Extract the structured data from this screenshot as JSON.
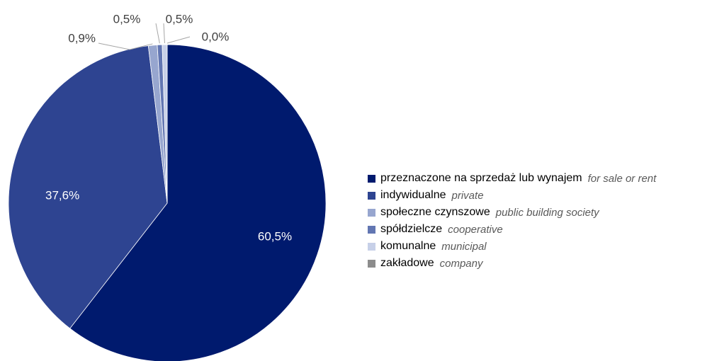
{
  "chart_data": {
    "type": "pie",
    "title": "",
    "slices": [
      {
        "label": "przeznaczone na sprzedaż lub wynajem",
        "label_en": "for sale or rent",
        "value": 60.5,
        "value_label": "60,5%",
        "color": "#001a6e"
      },
      {
        "label": "indywidualne",
        "label_en": "private",
        "value": 37.6,
        "value_label": "37,6%",
        "color": "#2e4491"
      },
      {
        "label": "społeczne czynszowe",
        "label_en": "public building society",
        "value": 0.9,
        "value_label": "0,9%",
        "color": "#97a6cf"
      },
      {
        "label": "spółdzielcze",
        "label_en": "cooperative",
        "value": 0.5,
        "value_label": "0,5%",
        "color": "#6276b2"
      },
      {
        "label": "komunalne",
        "label_en": "municipal",
        "value": 0.5,
        "value_label": "0,5%",
        "color": "#c7d0e8"
      },
      {
        "label": "zakładowe",
        "label_en": "company",
        "value": 0.0,
        "value_label": "0,0%",
        "color": "#8c8c8c"
      }
    ],
    "legend_position": "right"
  }
}
